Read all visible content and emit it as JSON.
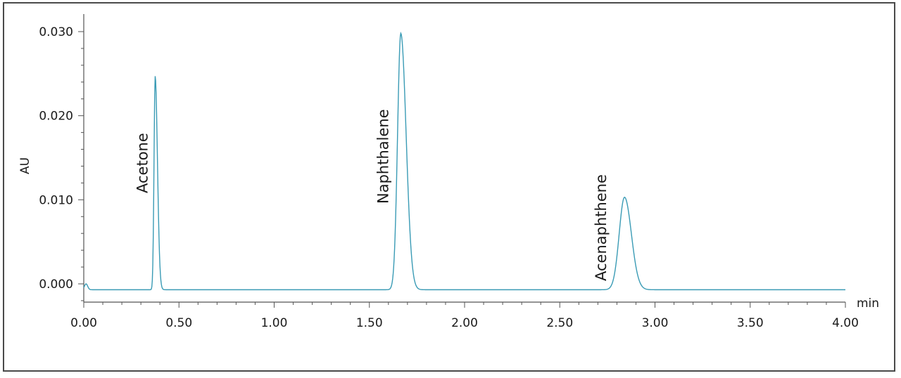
{
  "chart_data": {
    "type": "line",
    "title": "",
    "xlabel": "min",
    "ylabel": "AU",
    "xlim": [
      0.0,
      4.0
    ],
    "ylim": [
      -0.002,
      0.0315
    ],
    "grid": false,
    "line_color": "#3a9bb5",
    "x_ticks": [
      "0.00",
      "0.50",
      "1.00",
      "1.50",
      "2.00",
      "2.50",
      "3.00",
      "3.50",
      "4.00"
    ],
    "y_ticks": [
      "0.000",
      "0.010",
      "0.020",
      "0.030"
    ],
    "baseline": -0.0007,
    "peaks": [
      {
        "label": "Acetone",
        "retention_time": 0.375,
        "height": 0.0254,
        "width_sigma": 0.006,
        "tail_sigma": 0.012
      },
      {
        "label": "Naphthalene",
        "retention_time": 1.665,
        "height": 0.0305,
        "width_sigma": 0.017,
        "tail_sigma": 0.028
      },
      {
        "label": "Acenaphthene",
        "retention_time": 2.84,
        "height": 0.011,
        "width_sigma": 0.028,
        "tail_sigma": 0.036
      }
    ],
    "series": [
      {
        "x": [
          0.0,
          0.02,
          0.03,
          0.05,
          0.35,
          0.36,
          0.37,
          0.375,
          0.38,
          0.39,
          0.41,
          0.45,
          1.0,
          1.6,
          1.63,
          1.65,
          1.665,
          1.68,
          1.7,
          1.74,
          1.8,
          2.0,
          2.7,
          2.78,
          2.81,
          2.84,
          2.87,
          2.9,
          2.95,
          3.0,
          4.0
        ],
        "y": [
          0.0,
          -0.0002,
          -0.0006,
          -0.0007,
          -0.0006,
          0.004,
          0.018,
          0.0254,
          0.017,
          0.003,
          0.0,
          -0.0005,
          -0.0007,
          -0.0005,
          0.01,
          0.027,
          0.0305,
          0.024,
          0.01,
          0.001,
          -0.0003,
          -0.0007,
          -0.0007,
          0.003,
          0.008,
          0.011,
          0.008,
          0.003,
          0.0,
          -0.0005,
          -0.0007
        ]
      }
    ]
  }
}
